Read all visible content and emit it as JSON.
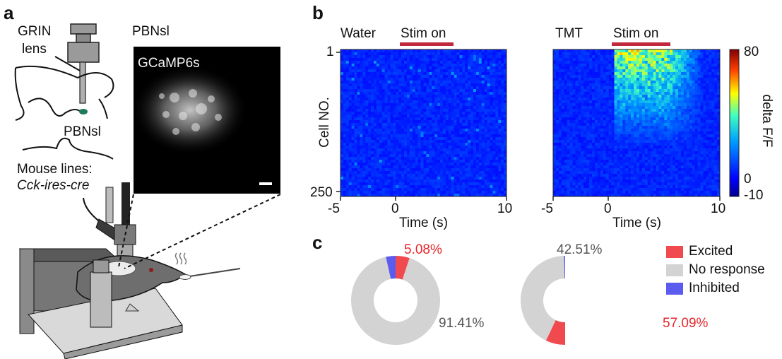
{
  "panel_labels": {
    "a": "a",
    "b": "b",
    "c": "c"
  },
  "panel_a": {
    "grin_line1": "GRIN",
    "grin_line2": "lens",
    "region_top": "PBNsl",
    "region_label": "PBNsl",
    "indicator": "GCaMP6s",
    "mouse_lines_label": "Mouse lines:",
    "mouse_line": "Cck-ires-cre"
  },
  "heatmaps": {
    "water": {
      "condition": "Water",
      "stim": "Stim on"
    },
    "tmt": {
      "condition": "TMT",
      "stim": "Stim on"
    },
    "ylabel": "Cell NO.",
    "y_top": "1",
    "y_bottom": "250",
    "xlabel": "Time (s)",
    "x_ticks": [
      "-5",
      "0",
      "10"
    ],
    "colorbar": {
      "label": "delta F/F",
      "max": "80",
      "mid": "0",
      "min": "-10"
    },
    "colors": {
      "stim_bar": "#c0283c"
    }
  },
  "pies": {
    "water": {
      "excited_label": "5.08%",
      "noresp_label": "91.41%"
    },
    "tmt": {
      "noresp_label": "42.51%",
      "excited_label": "57.09%"
    },
    "legend": {
      "excited": "Excited",
      "noresp": "No response",
      "inhibited": "Inhibited"
    },
    "colors": {
      "excited": "#f14a4e",
      "noresp": "#d3d3d3",
      "inhibited": "#5b5bef"
    }
  },
  "chart_data": [
    {
      "type": "heatmap",
      "title": "Water",
      "xlabel": "Time (s)",
      "ylabel": "Cell NO.",
      "xlim": [
        -5,
        10
      ],
      "ylim": [
        1,
        250
      ],
      "stim_window": [
        0.5,
        5.5
      ],
      "colorbar": {
        "label": "delta F/F",
        "range": [
          -10,
          80
        ]
      }
    },
    {
      "type": "heatmap",
      "title": "TMT",
      "xlabel": "Time (s)",
      "ylabel": "Cell NO.",
      "xlim": [
        -5,
        10
      ],
      "ylim": [
        1,
        250
      ],
      "stim_window": [
        0.5,
        5.5
      ],
      "colorbar": {
        "label": "delta F/F",
        "range": [
          -10,
          80
        ]
      }
    },
    {
      "type": "pie",
      "title": "",
      "slices": [
        {
          "name": "Excited",
          "value": 5.08
        },
        {
          "name": "No response",
          "value": 91.41
        },
        {
          "name": "Inhibited",
          "value": 3.51
        }
      ]
    },
    {
      "type": "pie",
      "title": "",
      "slices": [
        {
          "name": "Excited",
          "value": 57.09
        },
        {
          "name": "No response",
          "value": 42.51
        },
        {
          "name": "Inhibited",
          "value": 0.4
        }
      ]
    }
  ]
}
